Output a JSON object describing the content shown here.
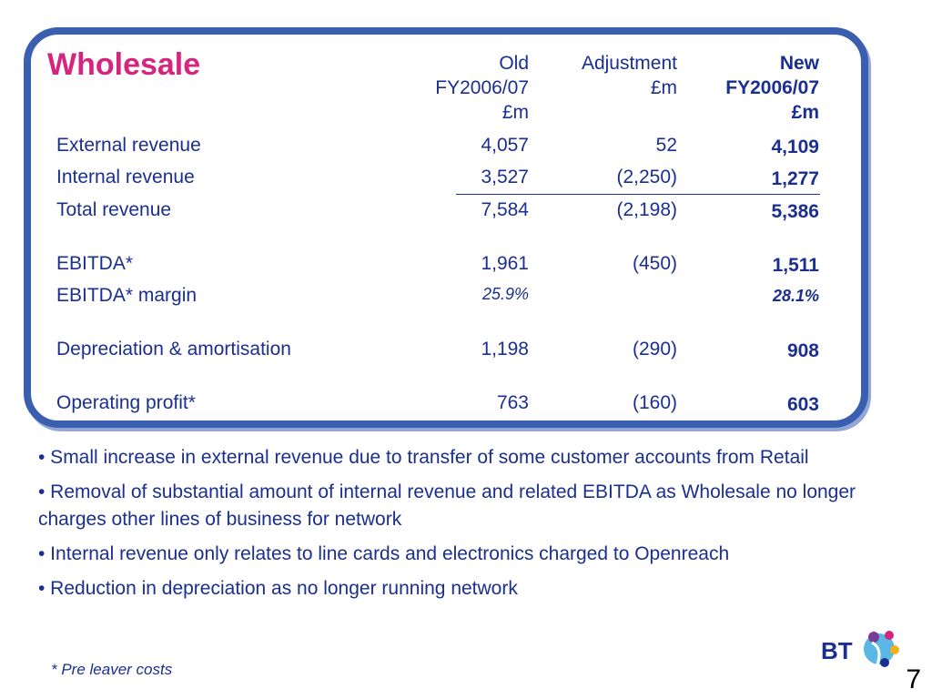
{
  "title": "Wholesale",
  "headers": {
    "old": "Old\nFY2006/07\n£m",
    "adjustment": "Adjustment\n£m",
    "new": "New\nFY2006/07\n£m"
  },
  "rows": [
    {
      "label": "External revenue",
      "old": "4,057",
      "adjustment": "52",
      "new": "4,109"
    },
    {
      "label": "Internal revenue",
      "old": "3,527",
      "adjustment": "(2,250)",
      "new": "1,277"
    },
    {
      "label": "Total revenue",
      "old": "7,584",
      "adjustment": "(2,198)",
      "new": "5,386"
    },
    {
      "label": "EBITDA*",
      "old": "1,961",
      "adjustment": "(450)",
      "new": "1,511"
    },
    {
      "label": "EBITDA* margin",
      "old": "25.9%",
      "adjustment": "",
      "new": "28.1%"
    },
    {
      "label": "Depreciation & amortisation",
      "old": "1,198",
      "adjustment": "(290)",
      "new": "908"
    },
    {
      "label": "Operating profit*",
      "old": "763",
      "adjustment": "(160)",
      "new": "603"
    }
  ],
  "notes": [
    "• Small increase in external revenue due to transfer of some customer accounts from Retail",
    "• Removal of substantial amount of internal revenue and related EBITDA as Wholesale no longer charges other lines of business for network",
    "• Internal revenue only relates to line cards and electronics charged to Openreach",
    "• Reduction in depreciation as no longer running network"
  ],
  "footnote": "* Pre leaver costs",
  "logo": {
    "text": "BT",
    "icon": "bt-piper-logo-icon",
    "colors": [
      "#1a2f8f",
      "#d6257f",
      "#f2b01e",
      "#5ab7e6",
      "#7a3c96"
    ]
  },
  "page_number": "7"
}
